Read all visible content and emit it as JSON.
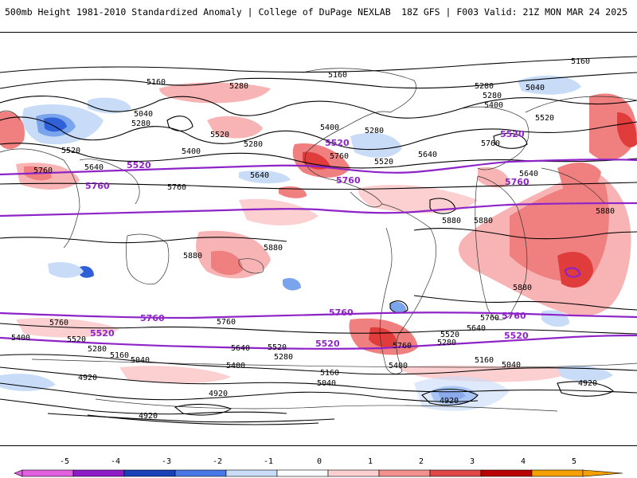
{
  "header": {
    "title": "500mb Height 1981-2010 Standardized Anomaly | College of DuPage NEXLAB",
    "run_info": "18Z GFS | F003 Valid: 21Z MON MAR 24 2025"
  },
  "legend": {
    "ticks": [
      "-5",
      "-4",
      "-3",
      "-2",
      "-1",
      "0",
      "1",
      "2",
      "3",
      "4",
      "5"
    ],
    "colors": [
      "#e060e0",
      "#8b1cc8",
      "#1840b8",
      "#4878e8",
      "#c8dcf8",
      "#ffffff",
      "#fcd0d0",
      "#f49090",
      "#e04848",
      "#b80000",
      "#f4a000"
    ]
  },
  "contours": {
    "labels": [
      "5160",
      "5280",
      "5040",
      "5520",
      "5400",
      "5640",
      "5760",
      "5880",
      "4920"
    ],
    "highlighted": [
      "5520",
      "5760"
    ]
  },
  "map": {
    "type": "standardized anomaly map",
    "projection": "global cylindrical",
    "palette": {
      "positive": "#f08080",
      "strong_positive": "#e03c3c",
      "negative": "#9ec4f0",
      "strong_negative": "#3060d8",
      "contour": "#000000",
      "highlight_contour": "#8e24c8",
      "coastline": "#333333"
    }
  }
}
